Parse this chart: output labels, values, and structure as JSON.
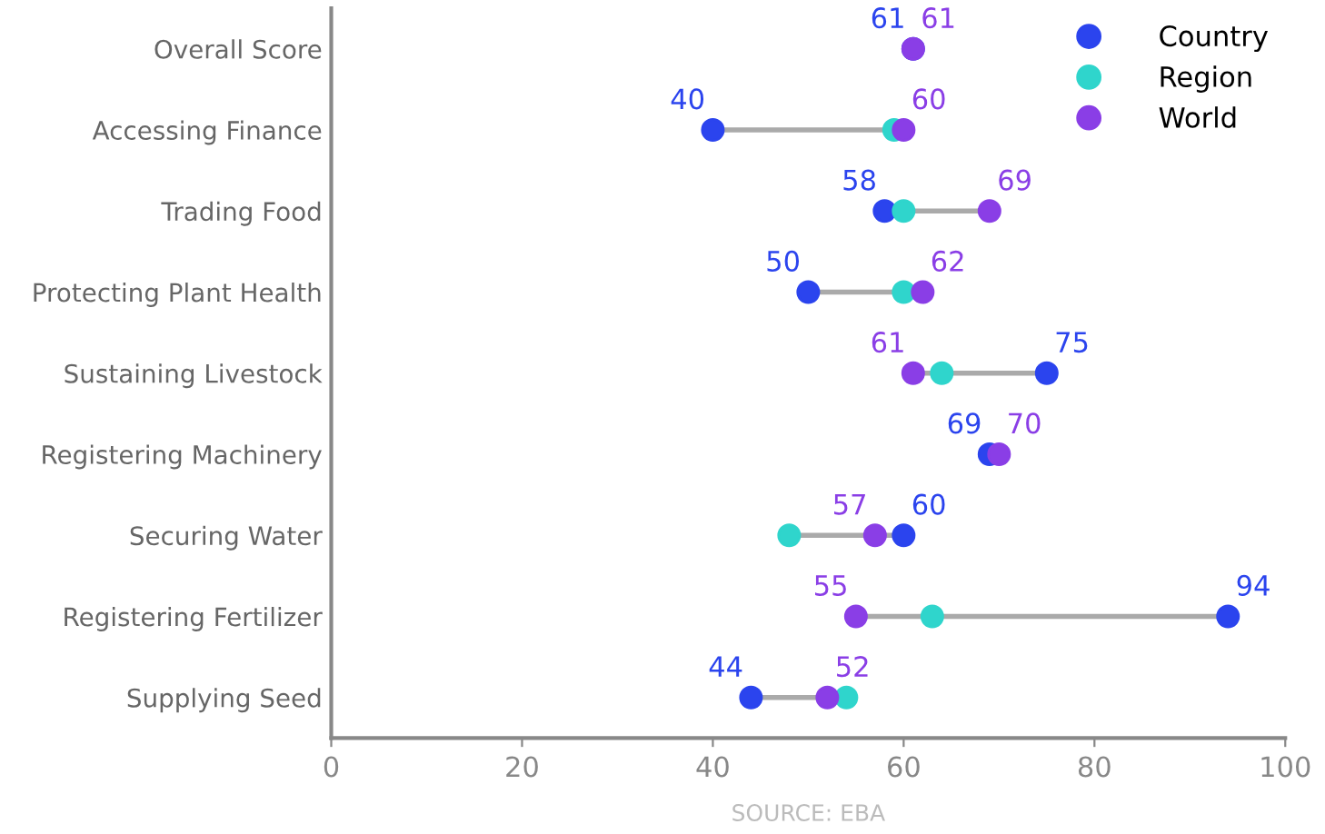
{
  "chart_data": {
    "type": "scatter",
    "orientation": "horizontal",
    "categories": [
      "Overall Score",
      "Accessing Finance",
      "Trading Food",
      "Protecting Plant Health",
      "Sustaining Livestock",
      "Registering Machinery",
      "Securing Water",
      "Registering Fertilizer",
      "Supplying Seed"
    ],
    "series": [
      {
        "name": "Country",
        "color": "#2b44ee",
        "values": [
          61,
          40,
          58,
          50,
          75,
          69,
          60,
          94,
          44
        ],
        "value_labels": [
          "61",
          "40",
          "58",
          "50",
          "75",
          "69",
          "60",
          "94",
          "44"
        ]
      },
      {
        "name": "Region",
        "color": "#2fd5cc",
        "values": [
          null,
          59,
          60,
          60,
          64,
          null,
          48,
          63,
          54
        ]
      },
      {
        "name": "World",
        "color": "#8a3ee6",
        "values": [
          61,
          60,
          69,
          62,
          61,
          70,
          57,
          55,
          52
        ],
        "value_labels": [
          "61",
          "60",
          "69",
          "62",
          "61",
          "70",
          "57",
          "55",
          "52"
        ]
      }
    ],
    "xlim": [
      0,
      100
    ],
    "xticks": [
      0,
      20,
      40,
      60,
      80,
      100
    ],
    "grid": false,
    "legend": "top right",
    "marker": "circle",
    "annotations": [
      "SOURCE: EBA"
    ]
  }
}
